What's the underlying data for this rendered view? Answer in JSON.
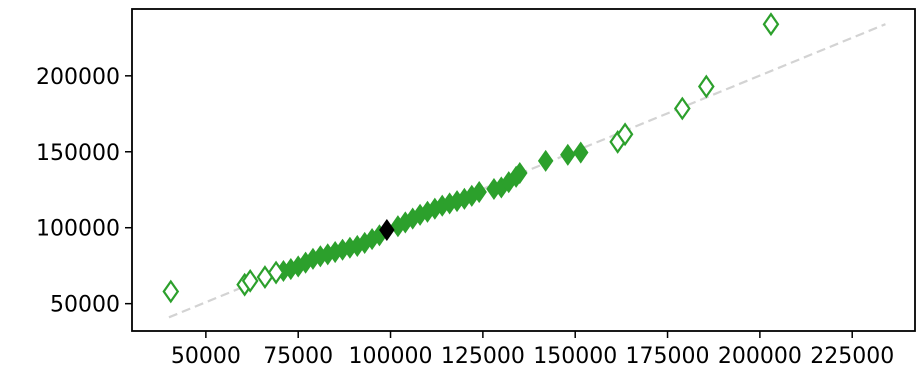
{
  "chart_data": {
    "type": "scatter",
    "title": "",
    "xlabel": "",
    "ylabel": "",
    "xlim": [
      30000,
      242000
    ],
    "ylim": [
      32000,
      244000
    ],
    "grid": false,
    "x_ticks": [
      50000,
      75000,
      100000,
      125000,
      150000,
      175000,
      200000,
      225000
    ],
    "x_tick_labels": [
      "50000",
      "75000",
      "100000",
      "125000",
      "150000",
      "175000",
      "200000",
      "225000"
    ],
    "y_ticks": [
      50000,
      100000,
      150000,
      200000
    ],
    "y_tick_labels": [
      "50000",
      "100000",
      "150000",
      "200000"
    ],
    "reference_line": {
      "style": "dashed",
      "color": "#d3d3d3",
      "x": [
        40000,
        234000
      ],
      "y": [
        41000,
        234000
      ]
    },
    "colors": {
      "series": "#2ca02c",
      "highlight": "#000000",
      "axes": "#000000"
    },
    "series": [
      {
        "marker": "diamond-filled",
        "color": "#2ca02c",
        "points": [
          [
            71000,
            71500
          ],
          [
            73000,
            72800
          ],
          [
            75000,
            74500
          ],
          [
            77000,
            77000
          ],
          [
            79000,
            79500
          ],
          [
            81000,
            81200
          ],
          [
            83000,
            82500
          ],
          [
            85000,
            84000
          ],
          [
            87000,
            85500
          ],
          [
            89000,
            86800
          ],
          [
            91000,
            88000
          ],
          [
            93000,
            90000
          ],
          [
            95000,
            92500
          ],
          [
            97000,
            95000
          ],
          [
            102000,
            101000
          ],
          [
            104000,
            103500
          ],
          [
            106000,
            106000
          ],
          [
            108000,
            108500
          ],
          [
            110000,
            110500
          ],
          [
            112000,
            112500
          ],
          [
            114000,
            114500
          ],
          [
            116000,
            116000
          ],
          [
            118000,
            117500
          ],
          [
            120000,
            119000
          ],
          [
            122000,
            121000
          ],
          [
            124000,
            123500
          ],
          [
            128000,
            125500
          ],
          [
            130000,
            126500
          ],
          [
            132000,
            130000
          ],
          [
            134000,
            133500
          ],
          [
            135000,
            136000
          ],
          [
            142000,
            144000
          ],
          [
            148000,
            148000
          ],
          [
            151500,
            149500
          ]
        ]
      },
      {
        "marker": "diamond-open",
        "color": "#2ca02c",
        "points": [
          [
            40500,
            58000
          ],
          [
            60500,
            62500
          ],
          [
            62000,
            65000
          ],
          [
            66000,
            67500
          ],
          [
            69000,
            70500
          ],
          [
            161500,
            156500
          ],
          [
            163500,
            161500
          ],
          [
            179000,
            178500
          ],
          [
            185500,
            193000
          ],
          [
            203000,
            234000
          ]
        ]
      },
      {
        "marker": "diamond-filled",
        "color": "#000000",
        "points": [
          [
            99000,
            98500
          ]
        ]
      }
    ]
  }
}
